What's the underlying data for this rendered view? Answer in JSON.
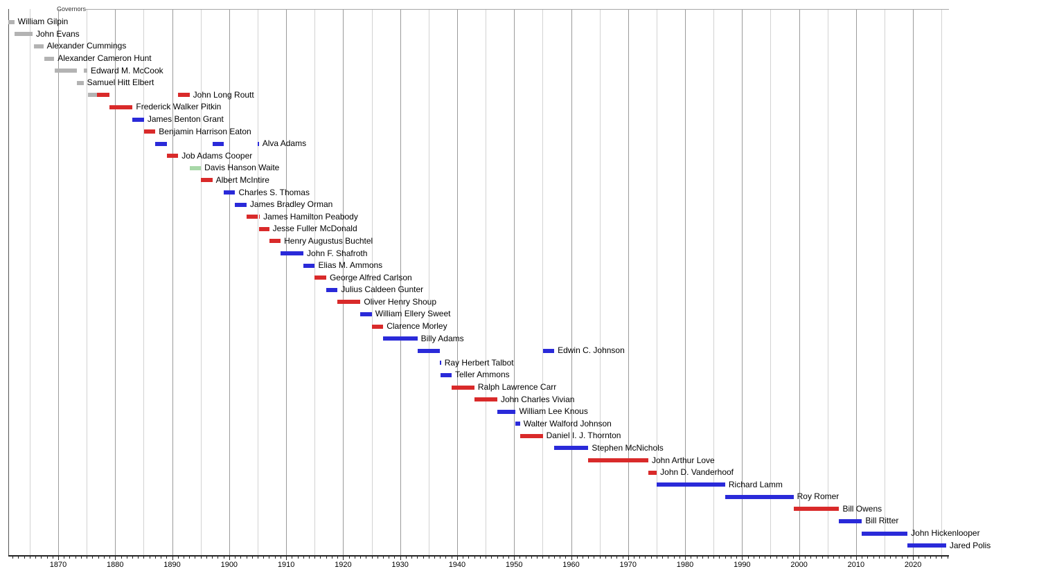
{
  "chart_data": {
    "type": "timeline",
    "title": "Governors",
    "x_axis": {
      "min": 1861.2,
      "max": 2026.3,
      "decade_tick_labels": [
        "1870",
        "1880",
        "1890",
        "1900",
        "1910",
        "1920",
        "1930",
        "1940",
        "1950",
        "1960",
        "1970",
        "1980",
        "1990",
        "2000",
        "2010",
        "2020"
      ],
      "minor_tick_interval_years": 1,
      "gridline_interval_years": 5,
      "grid": true,
      "legend_position": "none"
    },
    "party_colors": {
      "territorial": "#b3b3b3",
      "republican": "#d92a2a",
      "democratic": "#2a2ad9",
      "populist": "#a8d8a8"
    },
    "rows": [
      {
        "name": "William Gilpin",
        "terms": [
          [
            1861.2,
            1862.3,
            "territorial"
          ]
        ]
      },
      {
        "name": "John Evans",
        "terms": [
          [
            1862.3,
            1865.5,
            "territorial"
          ]
        ]
      },
      {
        "name": "Alexander Cummings",
        "terms": [
          [
            1865.8,
            1867.4,
            "territorial"
          ]
        ]
      },
      {
        "name": "Alexander Cameron Hunt",
        "terms": [
          [
            1867.6,
            1869.3,
            "territorial"
          ]
        ]
      },
      {
        "name": "Edward M. McCook",
        "terms": [
          [
            1869.45,
            1873.3,
            "territorial"
          ],
          [
            1874.45,
            1875.1,
            "territorial"
          ]
        ]
      },
      {
        "name": "Samuel Hitt Elbert",
        "terms": [
          [
            1873.3,
            1874.45,
            "territorial"
          ]
        ]
      },
      {
        "name": "John Long Routt",
        "terms": [
          [
            1875.2,
            1876.8,
            "territorial"
          ],
          [
            1876.8,
            1879.05,
            "republican"
          ],
          [
            1891.05,
            1893.05,
            "republican"
          ]
        ]
      },
      {
        "name": "Frederick Walker Pitkin",
        "terms": [
          [
            1879.05,
            1883.05,
            "republican"
          ]
        ]
      },
      {
        "name": "James Benton Grant",
        "terms": [
          [
            1883.05,
            1885.05,
            "democratic"
          ]
        ]
      },
      {
        "name": "Benjamin Harrison Eaton",
        "terms": [
          [
            1885.05,
            1887.05,
            "republican"
          ]
        ]
      },
      {
        "name": "Alva Adams",
        "terms": [
          [
            1887.05,
            1889.05,
            "democratic"
          ],
          [
            1897.05,
            1899.05,
            "democratic"
          ],
          [
            1905.03,
            1905.2,
            "democratic"
          ]
        ]
      },
      {
        "name": "Job Adams Cooper",
        "terms": [
          [
            1889.05,
            1891.05,
            "republican"
          ]
        ]
      },
      {
        "name": "Davis Hanson Waite",
        "terms": [
          [
            1893.05,
            1895.05,
            "populist"
          ]
        ]
      },
      {
        "name": "Albert McIntire",
        "terms": [
          [
            1895.05,
            1897.05,
            "republican"
          ]
        ]
      },
      {
        "name": "Charles S. Thomas",
        "terms": [
          [
            1899.05,
            1901.05,
            "democratic"
          ]
        ]
      },
      {
        "name": "James Bradley Orman",
        "terms": [
          [
            1901.05,
            1903.05,
            "democratic"
          ]
        ]
      },
      {
        "name": "James Hamilton Peabody",
        "terms": [
          [
            1903.05,
            1905.03,
            "republican"
          ],
          [
            1905.2,
            1905.25,
            "republican"
          ]
        ]
      },
      {
        "name": "Jesse Fuller McDonald",
        "terms": [
          [
            1905.25,
            1907.02,
            "republican"
          ]
        ]
      },
      {
        "name": "Henry Augustus Buchtel",
        "terms": [
          [
            1907.02,
            1909.03,
            "republican"
          ]
        ]
      },
      {
        "name": "John F. Shafroth",
        "terms": [
          [
            1909.03,
            1913.03,
            "democratic"
          ]
        ]
      },
      {
        "name": "Elias M. Ammons",
        "terms": [
          [
            1913.03,
            1915.03,
            "democratic"
          ]
        ]
      },
      {
        "name": "George Alfred Carlson",
        "terms": [
          [
            1915.03,
            1917.03,
            "republican"
          ]
        ]
      },
      {
        "name": "Julius Caldeen Gunter",
        "terms": [
          [
            1917.03,
            1919.03,
            "democratic"
          ]
        ]
      },
      {
        "name": "Oliver Henry Shoup",
        "terms": [
          [
            1919.03,
            1923.03,
            "republican"
          ]
        ]
      },
      {
        "name": "William Ellery Sweet",
        "terms": [
          [
            1923.03,
            1925.03,
            "democratic"
          ]
        ]
      },
      {
        "name": "Clarence Morley",
        "terms": [
          [
            1925.03,
            1927.03,
            "republican"
          ]
        ]
      },
      {
        "name": "Billy Adams",
        "terms": [
          [
            1927.03,
            1933.03,
            "democratic"
          ]
        ]
      },
      {
        "name": "Edwin C. Johnson",
        "terms": [
          [
            1933.03,
            1937.0,
            "democratic"
          ],
          [
            1955.03,
            1957.03,
            "democratic"
          ]
        ]
      },
      {
        "name": "Ray Herbert Talbot",
        "terms": [
          [
            1937.0,
            1937.04,
            "democratic"
          ]
        ]
      },
      {
        "name": "Teller Ammons",
        "terms": [
          [
            1937.04,
            1939.03,
            "democratic"
          ]
        ]
      },
      {
        "name": "Ralph Lawrence Carr",
        "terms": [
          [
            1939.03,
            1943.03,
            "republican"
          ]
        ]
      },
      {
        "name": "John Charles Vivian",
        "terms": [
          [
            1943.03,
            1947.05,
            "republican"
          ]
        ]
      },
      {
        "name": "William Lee Knous",
        "terms": [
          [
            1947.05,
            1950.27,
            "democratic"
          ]
        ]
      },
      {
        "name": "Walter Walford Johnson",
        "terms": [
          [
            1950.27,
            1951.03,
            "democratic"
          ]
        ]
      },
      {
        "name": "Daniel I. J. Thornton",
        "terms": [
          [
            1951.03,
            1955.03,
            "republican"
          ]
        ]
      },
      {
        "name": "Stephen McNichols",
        "terms": [
          [
            1957.03,
            1963.03,
            "democratic"
          ]
        ]
      },
      {
        "name": "John Arthur Love",
        "terms": [
          [
            1963.03,
            1973.55,
            "republican"
          ]
        ]
      },
      {
        "name": "John D. Vanderhoof",
        "terms": [
          [
            1973.55,
            1975.03,
            "republican"
          ]
        ]
      },
      {
        "name": "Richard Lamm",
        "terms": [
          [
            1975.03,
            1987.03,
            "democratic"
          ]
        ]
      },
      {
        "name": "Roy Romer",
        "terms": [
          [
            1987.03,
            1999.03,
            "democratic"
          ]
        ]
      },
      {
        "name": "Bill Owens",
        "terms": [
          [
            1999.03,
            2007.03,
            "republican"
          ]
        ]
      },
      {
        "name": "Bill Ritter",
        "terms": [
          [
            2007.03,
            2011.03,
            "democratic"
          ]
        ]
      },
      {
        "name": "John Hickenlooper",
        "terms": [
          [
            2011.03,
            2019.03,
            "democratic"
          ]
        ]
      },
      {
        "name": "Jared Polis",
        "terms": [
          [
            2019.03,
            2025.8,
            "democratic"
          ]
        ]
      }
    ]
  }
}
